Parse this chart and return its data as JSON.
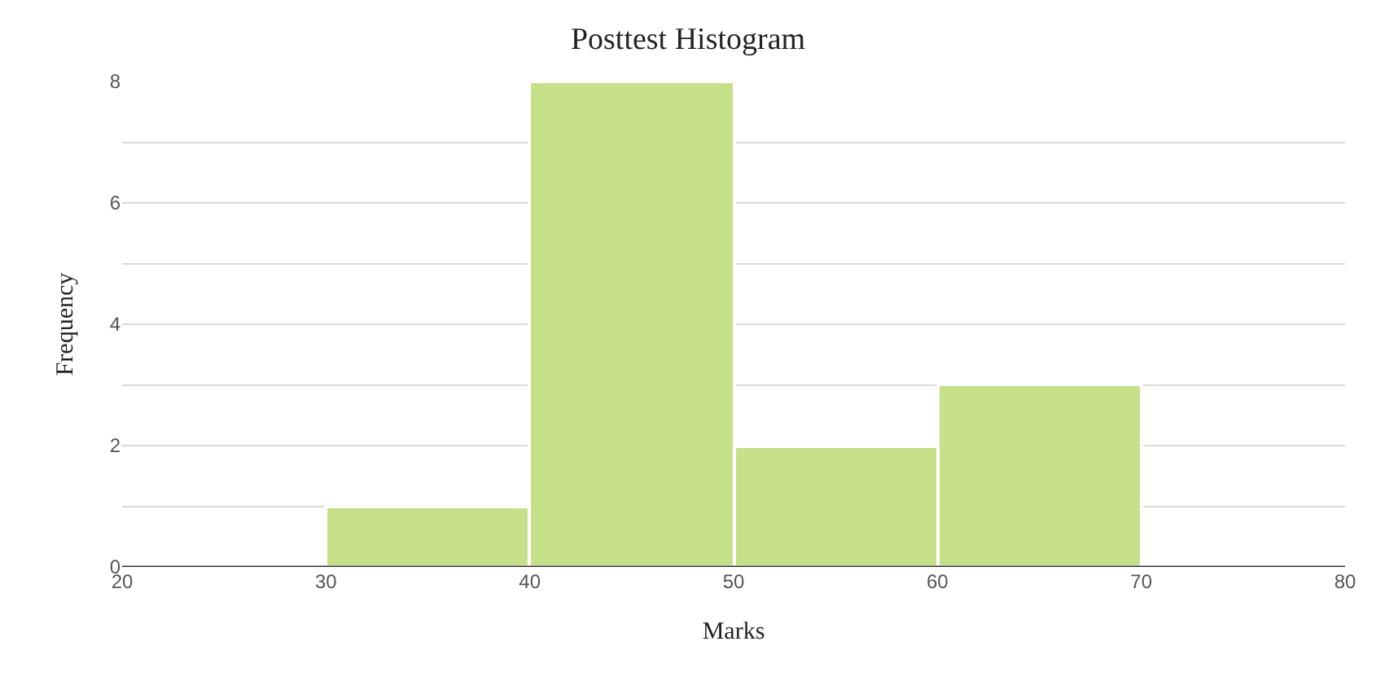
{
  "chart_data": {
    "type": "histogram",
    "title": "Posttest Histogram",
    "xlabel": "Marks",
    "ylabel": "Frequency",
    "bins": [
      20,
      30,
      40,
      50,
      60,
      70,
      80
    ],
    "values": [
      0,
      1,
      8,
      2,
      3,
      0
    ],
    "color": "#c6e08a",
    "xlim": [
      20,
      80
    ],
    "xticks": [
      20,
      30,
      40,
      50,
      60,
      70,
      80
    ],
    "ylim": [
      0,
      8
    ],
    "yticks": [
      0,
      {
        "value": 1,
        "label": null
      },
      2,
      {
        "value": 3,
        "label": null
      },
      4,
      {
        "value": 5,
        "label": null
      },
      6,
      {
        "value": 7,
        "label": null
      },
      8
    ],
    "grid": "y",
    "legend": false
  }
}
